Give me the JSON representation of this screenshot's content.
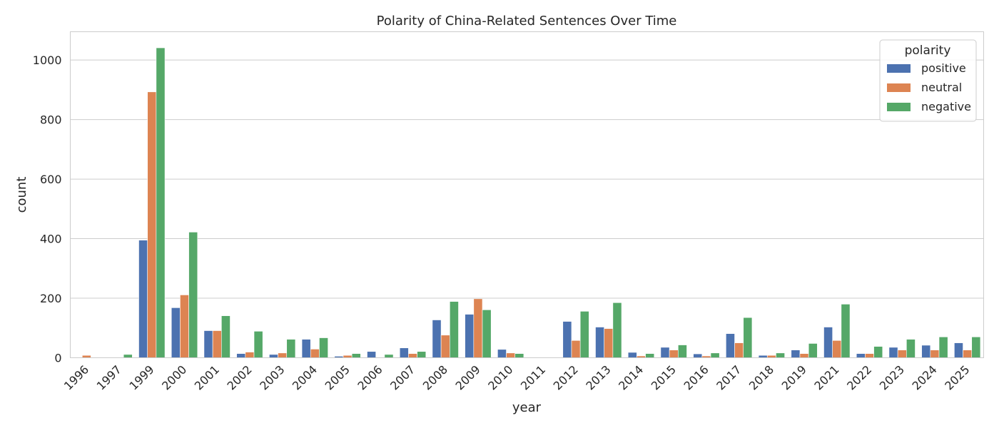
{
  "chart_data": {
    "type": "bar",
    "title": "Polarity of China-Related Sentences Over Time",
    "xlabel": "year",
    "ylabel": "count",
    "ylim": [
      0,
      1095
    ],
    "yticks": [
      0,
      200,
      400,
      600,
      800,
      1000
    ],
    "grid": true,
    "legend": {
      "title": "polarity",
      "placement": "top-right"
    },
    "categories": [
      "1996",
      "1997",
      "1999",
      "2000",
      "2001",
      "2002",
      "2003",
      "2004",
      "2005",
      "2006",
      "2007",
      "2008",
      "2009",
      "2010",
      "2011",
      "2012",
      "2013",
      "2014",
      "2015",
      "2016",
      "2017",
      "2018",
      "2019",
      "2021",
      "2022",
      "2023",
      "2024",
      "2025"
    ],
    "series": [
      {
        "name": "positive",
        "color": "#4c72b0",
        "values": [
          0,
          0,
          395,
          168,
          91,
          14,
          11,
          62,
          5,
          21,
          33,
          127,
          146,
          28,
          0,
          122,
          103,
          18,
          35,
          13,
          81,
          8,
          26,
          103,
          14,
          35,
          42,
          50
        ]
      },
      {
        "name": "neutral",
        "color": "#dd8452",
        "values": [
          8,
          0,
          893,
          211,
          91,
          19,
          16,
          29,
          8,
          0,
          14,
          76,
          198,
          16,
          0,
          58,
          98,
          6,
          26,
          6,
          50,
          8,
          14,
          58,
          14,
          26,
          26,
          26
        ]
      },
      {
        "name": "negative",
        "color": "#55a868",
        "values": [
          0,
          11,
          1041,
          422,
          141,
          89,
          62,
          67,
          14,
          11,
          21,
          189,
          161,
          14,
          0,
          156,
          185,
          14,
          43,
          16,
          135,
          16,
          48,
          180,
          38,
          62,
          70,
          70
        ]
      }
    ]
  }
}
